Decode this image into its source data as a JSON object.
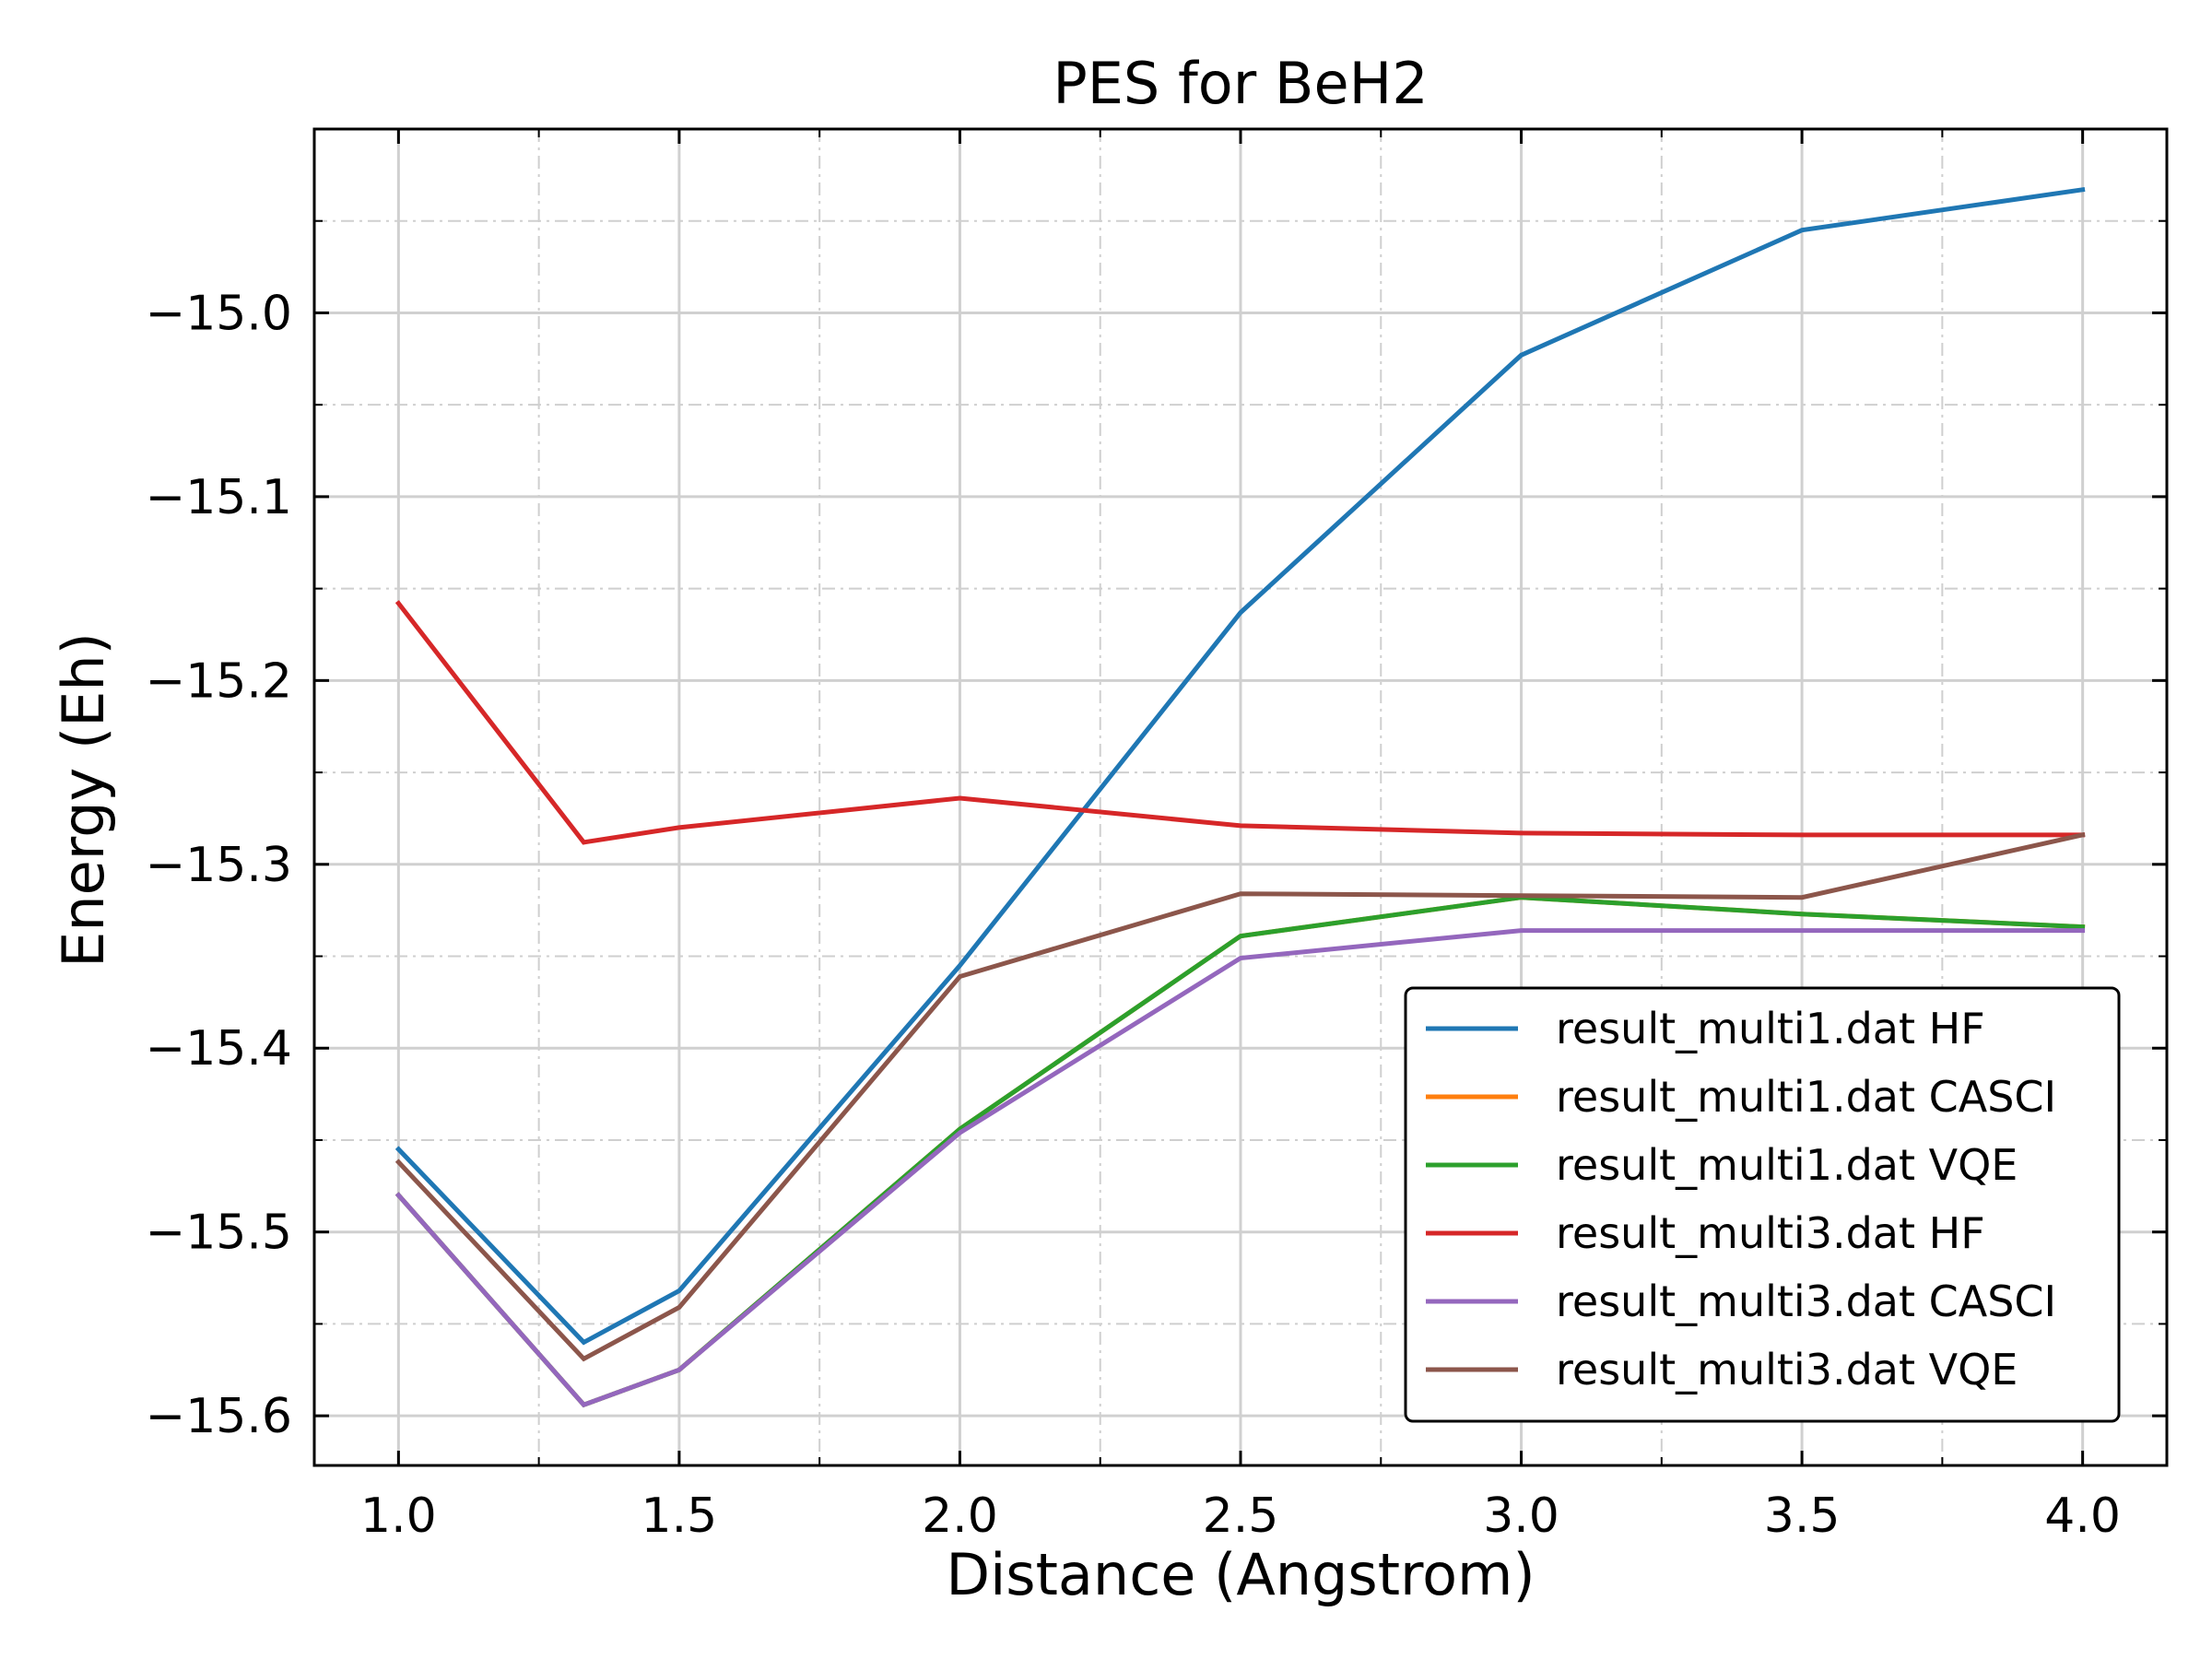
{
  "chart_data": {
    "type": "line",
    "title": "PES for BeH2",
    "xlabel": "Distance (Angstrom)",
    "ylabel": "Energy (Eh)",
    "xlim": [
      0.85,
      4.15
    ],
    "ylim": [
      -15.627,
      -14.9
    ],
    "xticks": [
      1.0,
      1.5,
      2.0,
      2.5,
      3.0,
      3.5,
      4.0
    ],
    "xtick_labels": [
      "1.0",
      "1.5",
      "2.0",
      "2.5",
      "3.0",
      "3.5",
      "4.0"
    ],
    "yticks": [
      -15.0,
      -15.1,
      -15.2,
      -15.3,
      -15.4,
      -15.5,
      -15.6
    ],
    "ytick_labels": [
      "−15.0",
      "−15.1",
      "−15.2",
      "−15.3",
      "−15.4",
      "−15.5",
      "−15.6"
    ],
    "x_minor_ticks": [
      1.25,
      1.75,
      2.25,
      2.75,
      3.25,
      3.75
    ],
    "y_minor_ticks": [
      -14.95,
      -15.05,
      -15.15,
      -15.25,
      -15.35,
      -15.45,
      -15.55
    ],
    "grid": true,
    "legend_position": "lower-right",
    "x": [
      1.0,
      1.33,
      1.5,
      2.0,
      2.5,
      3.0,
      3.5,
      4.0
    ],
    "series": [
      {
        "name": "result_multi1.dat HF",
        "color": "#1f77b4",
        "values": [
          -15.455,
          -15.56,
          -15.532,
          -15.355,
          -15.163,
          -15.023,
          -14.955,
          -14.933
        ]
      },
      {
        "name": "result_multi1.dat CASCI",
        "color": "#ff7f0e",
        "values": [
          -15.48,
          -15.594,
          -15.575,
          -15.444,
          -15.339,
          -15.318,
          -15.327,
          -15.334
        ]
      },
      {
        "name": "result_multi1.dat VQE",
        "color": "#2ca02c",
        "values": [
          -15.48,
          -15.594,
          -15.575,
          -15.444,
          -15.339,
          -15.318,
          -15.327,
          -15.334
        ]
      },
      {
        "name": "result_multi3.dat HF",
        "color": "#d62728",
        "values": [
          -15.158,
          -15.288,
          -15.28,
          -15.264,
          -15.279,
          -15.283,
          -15.284,
          -15.284
        ]
      },
      {
        "name": "result_multi3.dat CASCI",
        "color": "#9467bd",
        "values": [
          -15.48,
          -15.594,
          -15.575,
          -15.446,
          -15.351,
          -15.336,
          -15.336,
          -15.336
        ]
      },
      {
        "name": "result_multi3.dat VQE",
        "color": "#8c564b",
        "values": [
          -15.462,
          -15.569,
          -15.541,
          -15.361,
          -15.316,
          -15.317,
          -15.318,
          -15.284
        ]
      }
    ]
  }
}
